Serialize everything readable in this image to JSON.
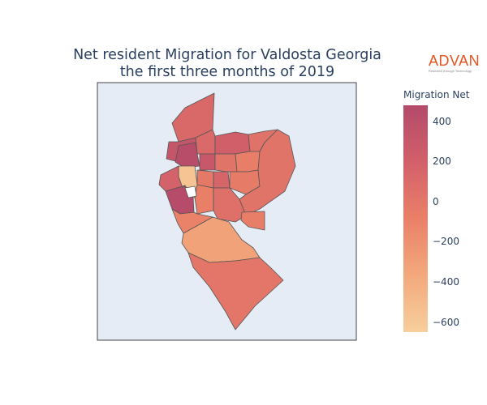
{
  "title": {
    "line1": "Net resident Migration for Valdosta Georgia",
    "line2": "the first three months of 2019"
  },
  "logo": {
    "word": "ADVAN",
    "tagline": "Research through Technology",
    "color": "#e8541f"
  },
  "colorbar": {
    "title": "Migration Net",
    "range": [
      -650,
      480
    ],
    "ticks": [
      "400",
      "200",
      "0",
      "−200",
      "−400",
      "−600"
    ],
    "tick_values": [
      400,
      200,
      0,
      -200,
      -400,
      -600
    ],
    "colorscale": [
      "#f7cf9c",
      "#f3a97c",
      "#ea8068",
      "#d2606a",
      "#b44a6a"
    ]
  },
  "map": {
    "background": "#e5ecf6",
    "border_color": "#444444",
    "regions": [
      {
        "name": "north-tract",
        "value": 120
      },
      {
        "name": "north-west-tract",
        "value": 330
      },
      {
        "name": "north-center-tract",
        "value": 110
      },
      {
        "name": "north-east-tract",
        "value": 210
      },
      {
        "name": "dark-north-tract",
        "value": 440
      },
      {
        "name": "center-tract-a",
        "value": 40
      },
      {
        "name": "center-tract-b",
        "value": 300
      },
      {
        "name": "center-tract-c",
        "value": 20
      },
      {
        "name": "center-tract-d",
        "value": -60
      },
      {
        "name": "center-tract-e",
        "value": 150
      },
      {
        "name": "center-tract-f",
        "value": -40
      },
      {
        "name": "east-large-tract",
        "value": 20
      },
      {
        "name": "west-light-tract",
        "value": -560
      },
      {
        "name": "west-dark-tract",
        "value": 460
      },
      {
        "name": "west-mid-tract",
        "value": -80
      },
      {
        "name": "south-center-tract",
        "value": 60
      },
      {
        "name": "south-east-small-tract",
        "value": -70
      },
      {
        "name": "south-large-light-tract",
        "value": -320
      },
      {
        "name": "south-tip-tract",
        "value": 0
      },
      {
        "name": "small-center-tract-1",
        "value": -100
      },
      {
        "name": "small-center-tract-2",
        "value": 180
      },
      {
        "name": "small-center-tract-3",
        "value": -20
      },
      {
        "name": "white-tract",
        "value": null
      }
    ]
  }
}
